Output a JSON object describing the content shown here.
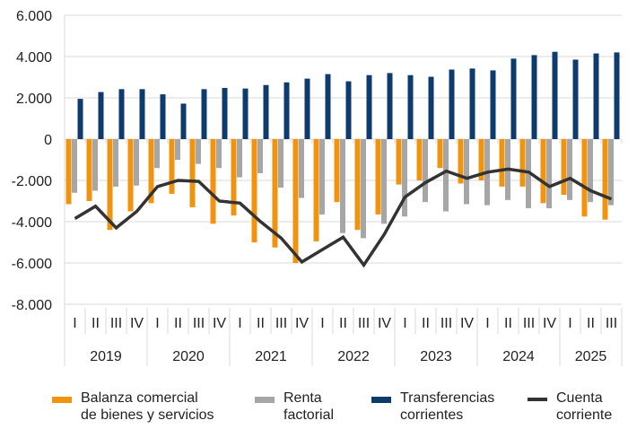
{
  "chart_data": {
    "type": "bar",
    "ylim": [
      -8000,
      6000
    ],
    "yticks": [
      "6.000",
      "4.000",
      "2.000",
      "0",
      "-2.000",
      "-4.000",
      "-6.000",
      "-8.000"
    ],
    "ytick_values": [
      6000,
      4000,
      2000,
      0,
      -2000,
      -4000,
      -6000,
      -8000
    ],
    "grid": true,
    "legend_position": "bottom",
    "years": [
      {
        "label": "2019",
        "n": 4
      },
      {
        "label": "2020",
        "n": 4
      },
      {
        "label": "2021",
        "n": 4
      },
      {
        "label": "2022",
        "n": 4
      },
      {
        "label": "2023",
        "n": 4
      },
      {
        "label": "2024",
        "n": 4
      },
      {
        "label": "2025",
        "n": 3
      }
    ],
    "quarters": [
      "I",
      "II",
      "III",
      "IV",
      "I",
      "II",
      "III",
      "IV",
      "I",
      "II",
      "III",
      "IV",
      "I",
      "II",
      "III",
      "IV",
      "I",
      "II",
      "III",
      "IV",
      "I",
      "II",
      "III",
      "IV",
      "I",
      "II",
      "III"
    ],
    "series": [
      {
        "name_lines": [
          "Balanza comercial",
          "de bienes y servicios"
        ],
        "type": "bar",
        "color": "#f0940f",
        "values": [
          -3150,
          -3000,
          -4400,
          -3500,
          -3100,
          -2650,
          -3300,
          -4100,
          -3700,
          -5000,
          -5250,
          -6000,
          -4950,
          -3050,
          -4400,
          -3650,
          -2200,
          -2000,
          -1400,
          -2150,
          -2000,
          -2300,
          -2300,
          -3100,
          -2700,
          -3750,
          -3900
        ]
      },
      {
        "name_lines": [
          "Renta",
          "factorial"
        ],
        "type": "bar",
        "color": "#a6a6a6",
        "values": [
          -2600,
          -2500,
          -2300,
          -2250,
          -1400,
          -1000,
          -1200,
          -1400,
          -1850,
          -1650,
          -2350,
          -2850,
          -3650,
          -4550,
          -4800,
          -4100,
          -3750,
          -3050,
          -3500,
          -3150,
          -3200,
          -2950,
          -3350,
          -3350,
          -2950,
          -3050,
          -3200
        ]
      },
      {
        "name_lines": [
          "Transferencias",
          "corrientes"
        ],
        "type": "bar",
        "color": "#0d3b6e",
        "values": [
          1950,
          2280,
          2420,
          2420,
          2170,
          1720,
          2420,
          2480,
          2450,
          2620,
          2750,
          2930,
          3150,
          2800,
          3100,
          3200,
          3100,
          3020,
          3370,
          3420,
          3330,
          3900,
          4070,
          4230,
          3850,
          4150,
          4200
        ]
      },
      {
        "name_lines": [
          "Cuenta",
          "corriente"
        ],
        "type": "line",
        "color": "#333333",
        "values": [
          -3850,
          -3250,
          -4300,
          -3500,
          -2300,
          -2000,
          -2050,
          -3000,
          -3100,
          -4000,
          -4800,
          -5950,
          -5350,
          -4750,
          -6100,
          -4600,
          -2800,
          -2100,
          -1550,
          -1900,
          -1600,
          -1450,
          -1600,
          -2300,
          -1900,
          -2500,
          -2900
        ]
      }
    ]
  }
}
